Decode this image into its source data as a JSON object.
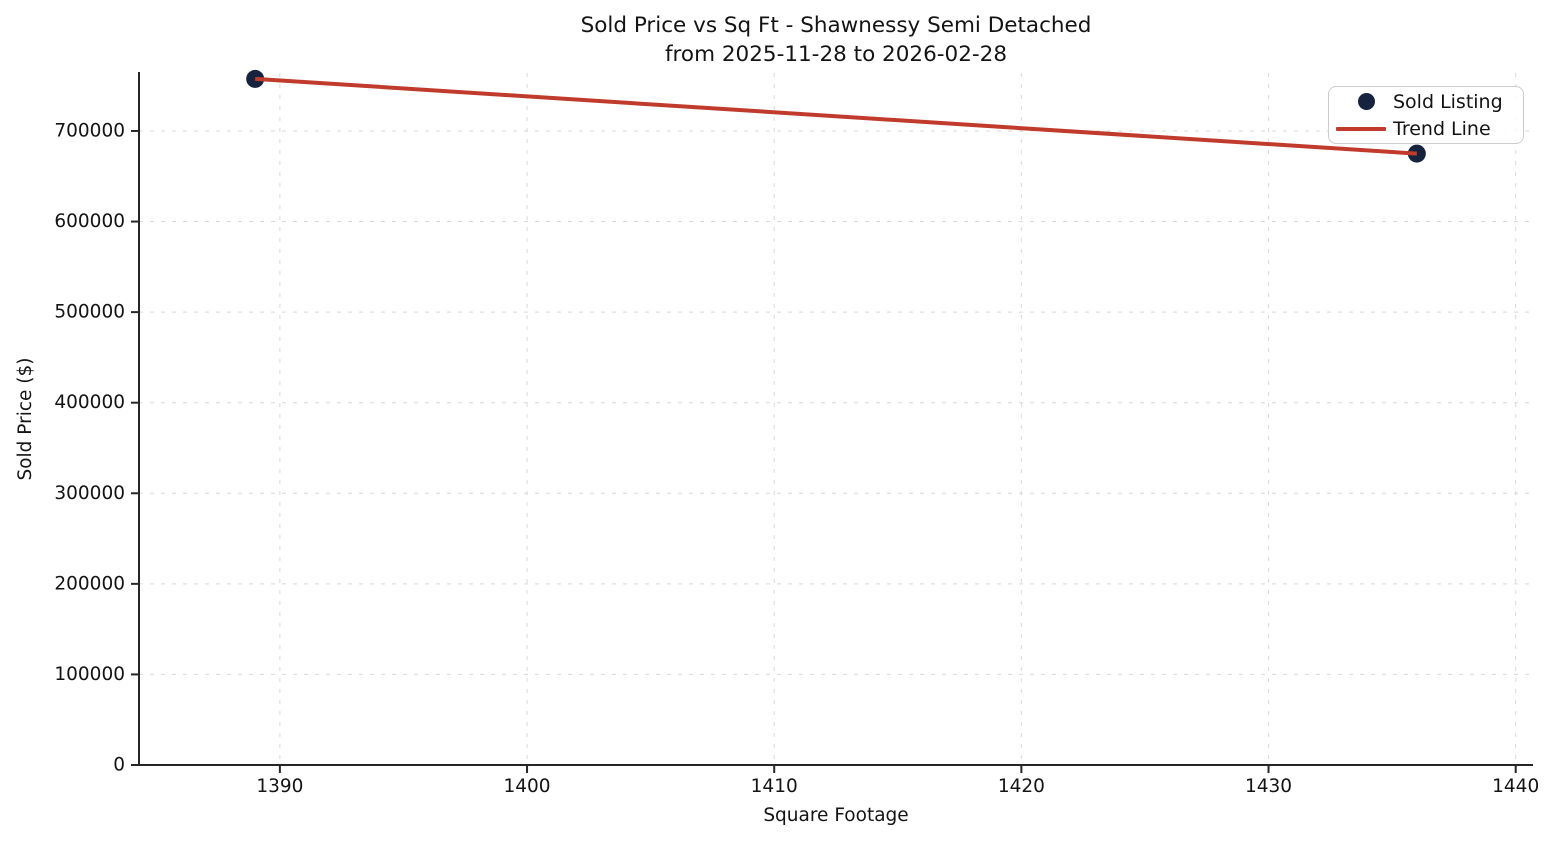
{
  "chart_data": {
    "type": "scatter",
    "title": "Sold Price vs Sq Ft - Shawnessy Semi Detached",
    "subtitle": "from 2025-11-28 to 2026-02-28",
    "xlabel": "Square Footage",
    "ylabel": "Sold Price ($)",
    "x_ticks": [
      1390,
      1400,
      1410,
      1420,
      1430,
      1440
    ],
    "y_ticks": [
      0,
      100000,
      200000,
      300000,
      400000,
      500000,
      600000,
      700000
    ],
    "xlim": [
      1384.3,
      1440.7
    ],
    "ylim": [
      0,
      764000
    ],
    "grid": true,
    "grid_style": "dashed",
    "legend_position": "upper-right",
    "series": [
      {
        "name": "Sold Listing",
        "kind": "scatter",
        "color": "#16233e",
        "points": [
          {
            "sqft": 1389,
            "sold_price": 757500
          },
          {
            "sqft": 1436,
            "sold_price": 675000
          }
        ]
      },
      {
        "name": "Trend Line",
        "kind": "line",
        "color": "#c03b2c",
        "points": [
          {
            "sqft": 1389,
            "sold_price": 757500
          },
          {
            "sqft": 1436,
            "sold_price": 675000
          }
        ]
      }
    ],
    "colors": {
      "grid": "#d9d9d9",
      "spine": "#262626",
      "text": "#141414",
      "scatter": "#16233e",
      "trend": "#c03b2c"
    }
  }
}
